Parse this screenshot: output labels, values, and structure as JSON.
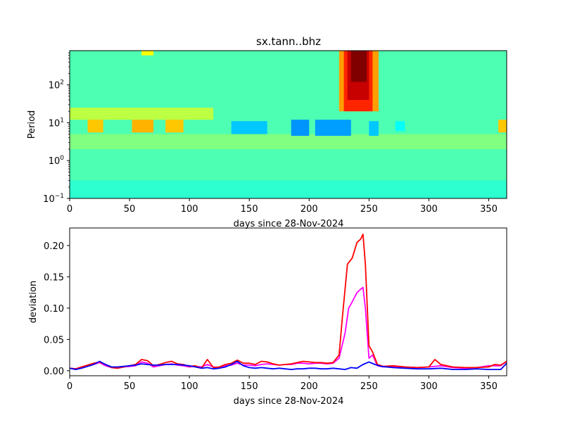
{
  "chart_data": [
    {
      "type": "heatmap",
      "title": "sx.tann..bhz",
      "xlabel": "days since 28-Nov-2024",
      "ylabel": "Period",
      "xlim": [
        0,
        365
      ],
      "ylim": [
        0.1,
        800
      ],
      "yscale": "log",
      "xticks": [
        "0",
        "50",
        "100",
        "150",
        "200",
        "250",
        "300",
        "350"
      ],
      "yticks": [
        {
          "base": "10",
          "exp": "−1",
          "value": 0.1
        },
        {
          "base": "10",
          "exp": "0",
          "value": 1
        },
        {
          "base": "10",
          "exp": "1",
          "value": 10
        },
        {
          "base": "10",
          "exp": "2",
          "value": 100
        }
      ],
      "colormap": "jet",
      "cells": [
        {
          "x0": 0,
          "x1": 365,
          "p0": 0.1,
          "p1": 800,
          "v": 0.45
        },
        {
          "x0": 0,
          "x1": 365,
          "p0": 0.1,
          "p1": 0.3,
          "v": 0.42
        },
        {
          "x0": 0,
          "x1": 365,
          "p0": 2,
          "p1": 5,
          "v": 0.5
        },
        {
          "x0": 0,
          "x1": 120,
          "p0": 12,
          "p1": 25,
          "v": 0.56
        },
        {
          "x0": 15,
          "x1": 28,
          "p0": 5.5,
          "p1": 12,
          "v": 0.68
        },
        {
          "x0": 52,
          "x1": 70,
          "p0": 5.5,
          "p1": 12,
          "v": 0.7
        },
        {
          "x0": 80,
          "x1": 95,
          "p0": 5.5,
          "p1": 12,
          "v": 0.68
        },
        {
          "x0": 135,
          "x1": 165,
          "p0": 5,
          "p1": 11,
          "v": 0.32
        },
        {
          "x0": 185,
          "x1": 200,
          "p0": 4.5,
          "p1": 12,
          "v": 0.27
        },
        {
          "x0": 205,
          "x1": 235,
          "p0": 4.5,
          "p1": 12,
          "v": 0.28
        },
        {
          "x0": 250,
          "x1": 258,
          "p0": 4.5,
          "p1": 11,
          "v": 0.32
        },
        {
          "x0": 272,
          "x1": 280,
          "p0": 6,
          "p1": 11,
          "v": 0.38
        },
        {
          "x0": 358,
          "x1": 365,
          "p0": 5.5,
          "p1": 12,
          "v": 0.68
        },
        {
          "x0": 60,
          "x1": 70,
          "p0": 600,
          "p1": 800,
          "v": 0.62
        },
        {
          "x0": 225,
          "x1": 258,
          "p0": 20,
          "p1": 800,
          "v": 0.72
        },
        {
          "x0": 229,
          "x1": 253,
          "p0": 20,
          "p1": 800,
          "v": 0.84
        },
        {
          "x0": 232,
          "x1": 250,
          "p0": 40,
          "p1": 800,
          "v": 0.93
        },
        {
          "x0": 235,
          "x1": 248,
          "p0": 120,
          "p1": 800,
          "v": 1.0
        }
      ]
    },
    {
      "type": "line",
      "xlabel": "days since 28-Nov-2024",
      "ylabel": "deviation",
      "xlim": [
        0,
        365
      ],
      "ylim": [
        -0.008,
        0.228
      ],
      "xticks": [
        "0",
        "50",
        "100",
        "150",
        "200",
        "250",
        "300",
        "350"
      ],
      "yticks": [
        "0.00",
        "0.05",
        "0.10",
        "0.15",
        "0.20"
      ],
      "series": [
        {
          "color": "#ff00ff",
          "x": [
            0,
            5,
            10,
            15,
            20,
            25,
            30,
            35,
            40,
            45,
            50,
            55,
            60,
            65,
            70,
            75,
            80,
            85,
            90,
            95,
            100,
            105,
            110,
            115,
            120,
            125,
            130,
            135,
            140,
            145,
            150,
            155,
            160,
            165,
            170,
            175,
            180,
            185,
            190,
            195,
            200,
            205,
            210,
            215,
            220,
            225,
            230,
            233,
            236,
            240,
            243,
            245,
            247,
            250,
            253,
            257,
            262,
            270,
            280,
            290,
            300,
            310,
            320,
            330,
            340,
            350,
            360,
            365
          ],
          "y": [
            0.004,
            0.003,
            0.006,
            0.008,
            0.01,
            0.013,
            0.008,
            0.005,
            0.004,
            0.006,
            0.007,
            0.008,
            0.014,
            0.012,
            0.006,
            0.008,
            0.01,
            0.011,
            0.009,
            0.008,
            0.006,
            0.007,
            0.006,
            0.01,
            0.006,
            0.005,
            0.008,
            0.009,
            0.012,
            0.009,
            0.009,
            0.008,
            0.01,
            0.011,
            0.01,
            0.009,
            0.01,
            0.01,
            0.012,
            0.012,
            0.011,
            0.012,
            0.012,
            0.011,
            0.012,
            0.02,
            0.06,
            0.1,
            0.11,
            0.125,
            0.13,
            0.133,
            0.1,
            0.02,
            0.025,
            0.008,
            0.006,
            0.007,
            0.006,
            0.005,
            0.006,
            0.008,
            0.005,
            0.004,
            0.005,
            0.008,
            0.008,
            0.015
          ]
        },
        {
          "color": "#ff0000",
          "x": [
            0,
            5,
            10,
            15,
            20,
            25,
            30,
            35,
            40,
            45,
            50,
            55,
            60,
            65,
            70,
            75,
            80,
            85,
            90,
            95,
            100,
            105,
            110,
            115,
            120,
            125,
            130,
            135,
            140,
            145,
            150,
            155,
            160,
            165,
            170,
            175,
            180,
            185,
            190,
            195,
            200,
            205,
            210,
            215,
            220,
            225,
            228,
            232,
            236,
            240,
            243,
            245,
            247,
            250,
            253,
            257,
            262,
            270,
            280,
            290,
            300,
            305,
            310,
            320,
            330,
            340,
            350,
            355,
            360,
            365
          ],
          "y": [
            0.004,
            0.003,
            0.006,
            0.009,
            0.012,
            0.014,
            0.01,
            0.005,
            0.004,
            0.006,
            0.008,
            0.01,
            0.018,
            0.016,
            0.008,
            0.01,
            0.013,
            0.015,
            0.011,
            0.01,
            0.007,
            0.008,
            0.004,
            0.018,
            0.005,
            0.006,
            0.01,
            0.012,
            0.017,
            0.012,
            0.012,
            0.01,
            0.015,
            0.014,
            0.011,
            0.009,
            0.01,
            0.011,
            0.013,
            0.015,
            0.014,
            0.013,
            0.013,
            0.012,
            0.013,
            0.025,
            0.09,
            0.17,
            0.18,
            0.205,
            0.21,
            0.218,
            0.17,
            0.04,
            0.03,
            0.01,
            0.007,
            0.008,
            0.006,
            0.005,
            0.006,
            0.018,
            0.01,
            0.006,
            0.005,
            0.005,
            0.006,
            0.01,
            0.009,
            0.015
          ]
        },
        {
          "color": "#0000ff",
          "x": [
            0,
            5,
            10,
            15,
            20,
            25,
            30,
            35,
            40,
            45,
            50,
            55,
            60,
            65,
            70,
            75,
            80,
            85,
            90,
            95,
            100,
            105,
            110,
            115,
            120,
            125,
            130,
            135,
            140,
            145,
            150,
            155,
            160,
            165,
            170,
            175,
            180,
            185,
            190,
            195,
            200,
            205,
            210,
            215,
            220,
            225,
            230,
            235,
            240,
            245,
            250,
            255,
            260,
            270,
            280,
            290,
            300,
            310,
            320,
            330,
            340,
            350,
            360,
            365
          ],
          "y": [
            0.004,
            0.002,
            0.004,
            0.007,
            0.01,
            0.015,
            0.01,
            0.006,
            0.006,
            0.007,
            0.008,
            0.009,
            0.011,
            0.01,
            0.009,
            0.009,
            0.01,
            0.01,
            0.01,
            0.009,
            0.008,
            0.006,
            0.004,
            0.005,
            0.003,
            0.004,
            0.006,
            0.01,
            0.015,
            0.008,
            0.005,
            0.004,
            0.005,
            0.004,
            0.003,
            0.004,
            0.003,
            0.002,
            0.003,
            0.003,
            0.004,
            0.004,
            0.003,
            0.003,
            0.004,
            0.003,
            0.002,
            0.005,
            0.004,
            0.01,
            0.014,
            0.01,
            0.007,
            0.005,
            0.004,
            0.003,
            0.003,
            0.004,
            0.002,
            0.002,
            0.003,
            0.002,
            0.002,
            0.012
          ]
        }
      ]
    }
  ]
}
